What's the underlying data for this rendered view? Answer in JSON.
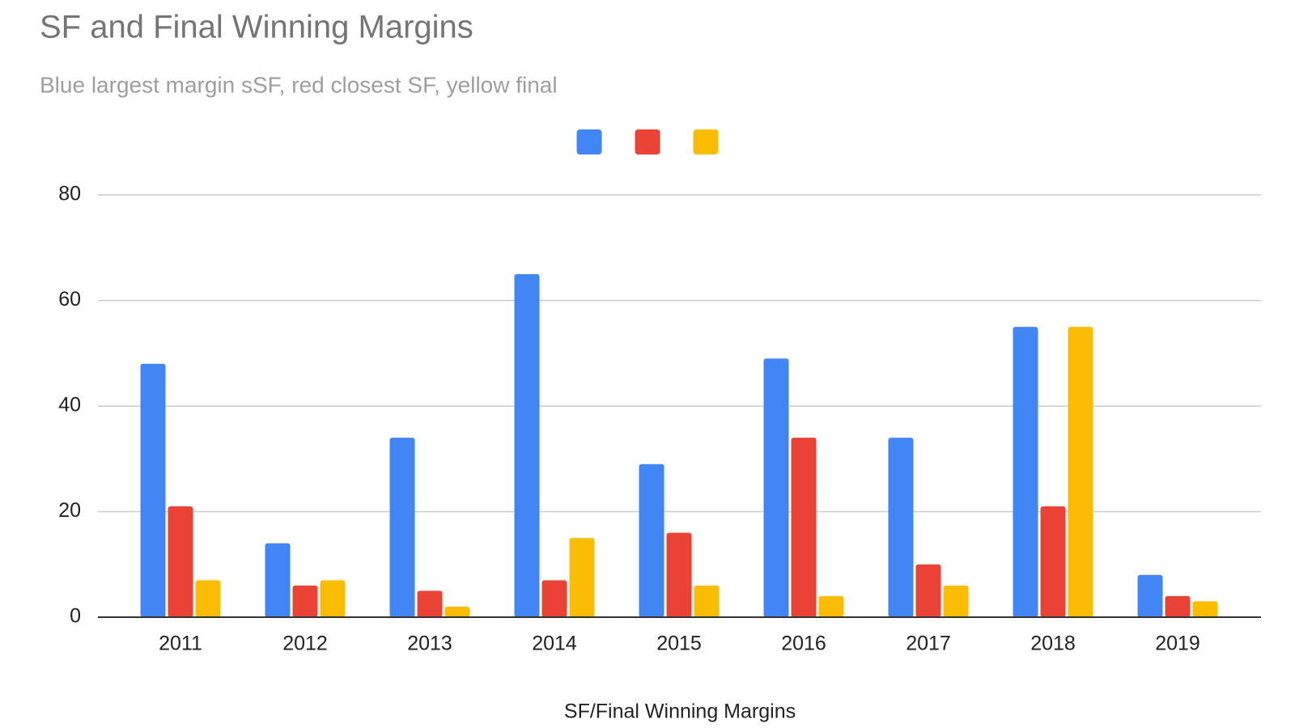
{
  "chart_data": {
    "type": "bar",
    "title": "SF and Final Winning Margins",
    "subtitle": "Blue largest margin sSF, red closest SF, yellow final",
    "x_label": "SF/Final Winning Margins",
    "categories": [
      "2011",
      "2012",
      "2013",
      "2014",
      "2015",
      "2016",
      "2017",
      "2018",
      "2019"
    ],
    "series": [
      {
        "color": "#4285f4",
        "values": [
          48,
          14,
          34,
          65,
          29,
          49,
          34,
          55,
          8
        ]
      },
      {
        "color": "#ea4335",
        "values": [
          21,
          6,
          5,
          7,
          16,
          34,
          10,
          21,
          4
        ]
      },
      {
        "color": "#fbbc04",
        "values": [
          7,
          7,
          2,
          15,
          6,
          4,
          6,
          55,
          3
        ]
      }
    ],
    "ylim": [
      0,
      80
    ],
    "yticks": [
      0,
      20,
      40,
      60,
      80
    ],
    "grid": true,
    "legend": "top"
  }
}
